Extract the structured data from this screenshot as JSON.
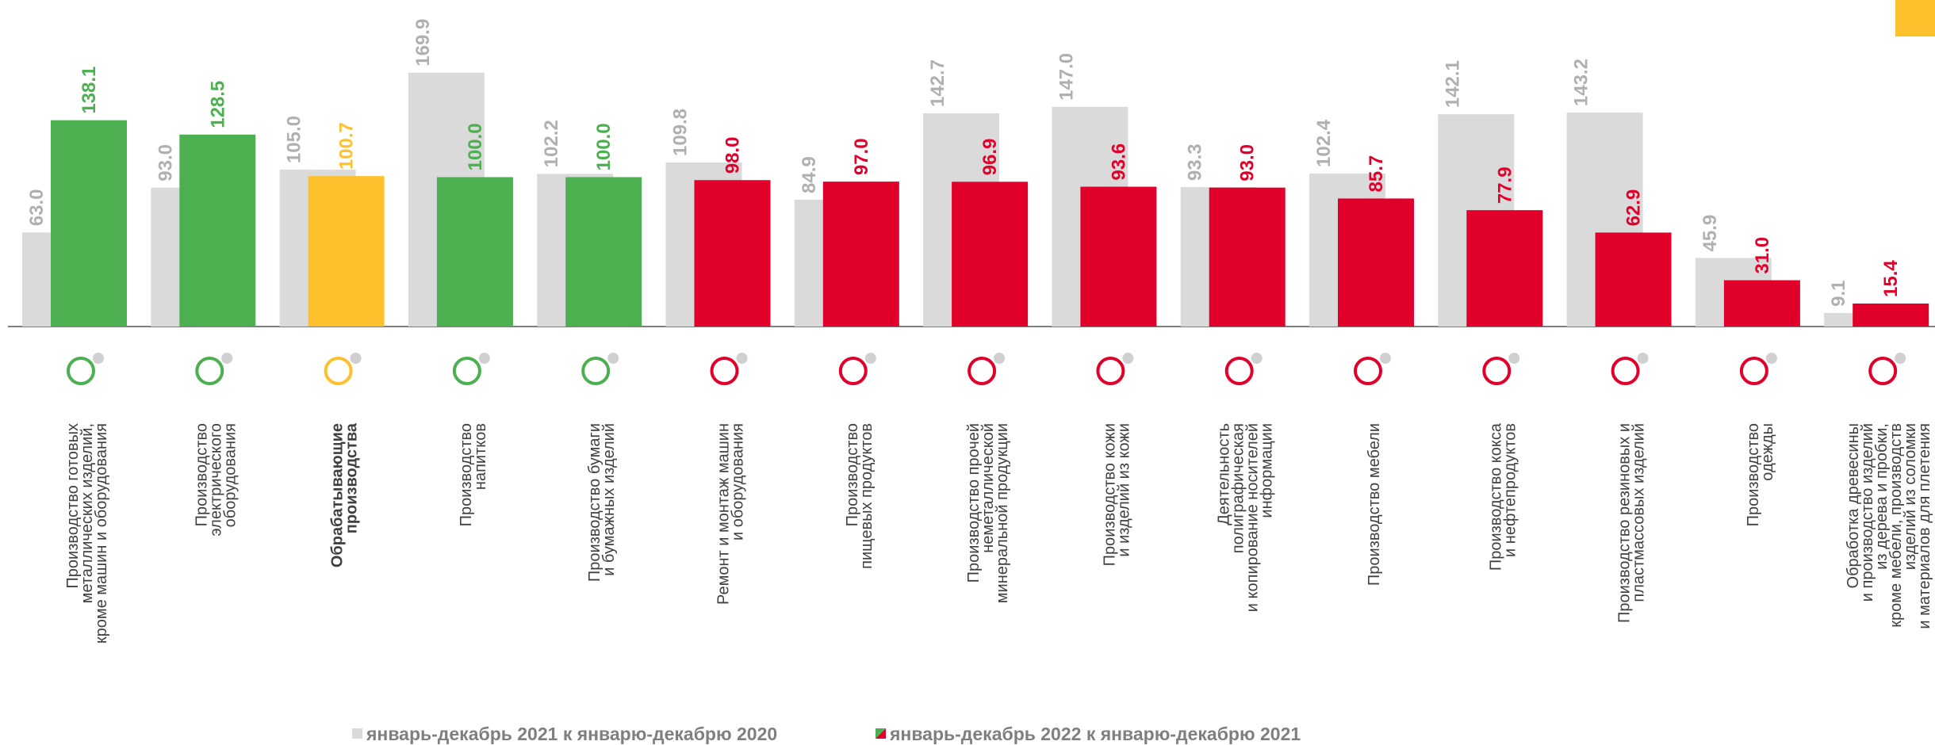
{
  "chart_data": {
    "type": "bar",
    "categories": [
      [
        "Производство готовых",
        "металлических изделий,",
        "кроме машин и оборудования"
      ],
      [
        "Производство",
        "электрического",
        "оборудования"
      ],
      [
        "Обрабатывающие",
        "производства"
      ],
      [
        "Производство",
        "напитков"
      ],
      [
        "Производство бумаги",
        "и бумажных изделий"
      ],
      [
        "Ремонт и монтаж машин",
        "и оборудования"
      ],
      [
        "Производство",
        "пищевых продуктов"
      ],
      [
        "Производство прочей",
        "неметаллической",
        "минеральной продукции"
      ],
      [
        "Производство кожи",
        "и изделий из кожи"
      ],
      [
        "Деятельность",
        "полиграфическая",
        "и копирование носителей",
        "информации"
      ],
      [
        "Производство мебели"
      ],
      [
        "Производство кокса",
        "и нефтепродуктов"
      ],
      [
        "Производство резиновых и",
        "пластмассовых изделий"
      ],
      [
        "Производство",
        "одежды"
      ],
      [
        "Обработка древесины",
        "и производство изделий",
        "из дерева и пробки,",
        "кроме мебели, производств",
        "изделий из соломки",
        "и материалов для плетения"
      ]
    ],
    "bold_category": 2,
    "series": [
      {
        "name": "январь-декабрь 2021 к январю-декабрю 2020",
        "color": "#dadada",
        "label_color": "#b0b0b0",
        "values": [
          63.0,
          93.0,
          105.0,
          169.9,
          102.2,
          109.8,
          84.9,
          142.7,
          147.0,
          93.3,
          102.4,
          142.1,
          143.2,
          45.9,
          9.1
        ],
        "value_labels": [
          "63.0",
          "93.0",
          "105.0",
          "169.9",
          "102.2",
          "109.8",
          "84.9",
          "142.7",
          "147.0",
          "93.3",
          "102.4",
          "142.1",
          "143.2",
          "45.9",
          "9.1"
        ]
      },
      {
        "name": "январь-декабрь 2022 к январю-декабрю 2021",
        "colors": [
          "#4caf50",
          "#4caf50",
          "#fdc12e",
          "#4caf50",
          "#4caf50",
          "#e1002a",
          "#e1002a",
          "#e1002a",
          "#e1002a",
          "#e1002a",
          "#e1002a",
          "#e1002a",
          "#e1002a",
          "#e1002a",
          "#e1002a"
        ],
        "values": [
          138.1,
          128.5,
          100.7,
          100.0,
          100.0,
          98.0,
          97.0,
          96.9,
          93.6,
          93.0,
          85.7,
          77.9,
          62.9,
          31.0,
          15.4
        ],
        "value_labels": [
          "138.1",
          "128.5",
          "100.7",
          "100.0",
          "100.0",
          "98.0",
          "97.0",
          "96.9",
          "93.6",
          "93.0",
          "85.7",
          "77.9",
          "62.9",
          "31.0",
          "15.4"
        ]
      }
    ]
  }
}
